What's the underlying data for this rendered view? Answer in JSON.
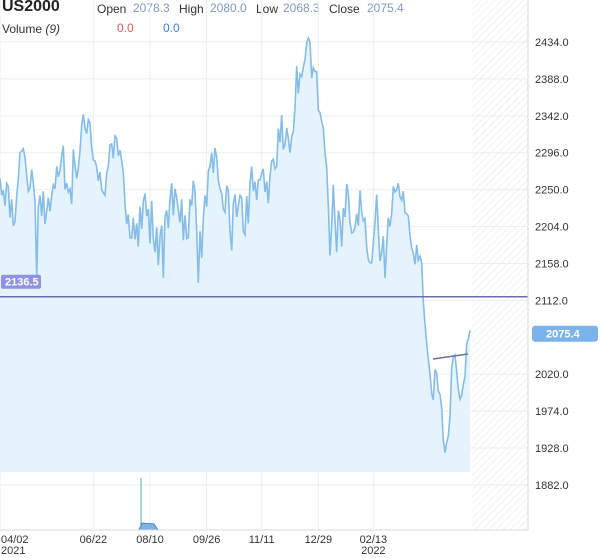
{
  "header": {
    "symbol": "US2000",
    "open_label": "Open",
    "open_value": "2078.3",
    "high_label": "High",
    "high_value": "2080.0",
    "low_label": "Low",
    "low_value": "2068.3",
    "close_label": "Close",
    "close_value": "2075.4",
    "volume_label": "Volume",
    "volume_period": "(9)",
    "volume_value_1": "0.0",
    "volume_value_2": "0.0"
  },
  "colors": {
    "line": "#86bce8",
    "fill": "#e5f3fd",
    "hline": "#6b6fa8",
    "label_bg": "#8f93e6",
    "last_bg": "#7bb4ea",
    "vol_red": "#d45a5a",
    "vol_blue": "#3f7fd6"
  },
  "chart_data": {
    "type": "area",
    "y_ticks": [
      "2434.0",
      "2388.0",
      "2342.0",
      "2296.0",
      "2250.0",
      "2204.0",
      "2158.0",
      "2112.0",
      "2020.0",
      "1974.0",
      "1928.0",
      "1882.0"
    ],
    "y_tick_values": [
      2434,
      2388,
      2342,
      2296,
      2250,
      2204,
      2158,
      2112,
      2020,
      1974,
      1928,
      1882
    ],
    "ylim": [
      1860,
      2465
    ],
    "x_ticks": [
      {
        "label": "04/02",
        "sub": "2021",
        "idx": 0
      },
      {
        "label": "06/22",
        "sub": "",
        "idx": 56
      },
      {
        "label": "08/10",
        "sub": "",
        "idx": 90
      },
      {
        "label": "09/26",
        "sub": "",
        "idx": 124
      },
      {
        "label": "11/11",
        "sub": "",
        "idx": 157
      },
      {
        "label": "12/29",
        "sub": "",
        "idx": 191
      },
      {
        "label": "02/13",
        "sub": "2022",
        "idx": 224
      }
    ],
    "horizontal_line": {
      "value": 2136.5,
      "label": "2136.5"
    },
    "last_price": {
      "value": 2075.4,
      "label": "2075.4"
    },
    "values": [
      2264,
      2243,
      2249,
      2230,
      2258,
      2254,
      2215,
      2238,
      2205,
      2210,
      2242,
      2263,
      2296,
      2298,
      2301,
      2290,
      2268,
      2248,
      2252,
      2275,
      2259,
      2235,
      2140,
      2228,
      2243,
      2217,
      2248,
      2207,
      2223,
      2240,
      2223,
      2243,
      2256,
      2251,
      2279,
      2266,
      2274,
      2292,
      2305,
      2250,
      2258,
      2247,
      2251,
      2232,
      2300,
      2280,
      2264,
      2277,
      2298,
      2330,
      2344,
      2327,
      2320,
      2337,
      2333,
      2302,
      2287,
      2286,
      2278,
      2261,
      2272,
      2250,
      2246,
      2243,
      2271,
      2279,
      2306,
      2307,
      2289,
      2317,
      2314,
      2292,
      2299,
      2286,
      2271,
      2233,
      2207,
      2219,
      2190,
      2190,
      2215,
      2188,
      2208,
      2179,
      2229,
      2201,
      2235,
      2245,
      2217,
      2226,
      2183,
      2236,
      2189,
      2172,
      2203,
      2156,
      2191,
      2205,
      2140,
      2216,
      2224,
      2202,
      2238,
      2258,
      2218,
      2251,
      2240,
      2225,
      2209,
      2238,
      2187,
      2218,
      2189,
      2190,
      2238,
      2230,
      2261,
      2248,
      2198,
      2134,
      2198,
      2165,
      2214,
      2243,
      2229,
      2273,
      2279,
      2296,
      2271,
      2302,
      2290,
      2262,
      2251,
      2245,
      2226,
      2222,
      2255,
      2249,
      2198,
      2174,
      2233,
      2244,
      2216,
      2230,
      2243,
      2240,
      2198,
      2194,
      2242,
      2208,
      2258,
      2279,
      2248,
      2260,
      2237,
      2262,
      2262,
      2270,
      2276,
      2247,
      2260,
      2233,
      2267,
      2286,
      2288,
      2276,
      2279,
      2326,
      2309,
      2343,
      2300,
      2306,
      2327,
      2314,
      2296,
      2316,
      2322,
      2352,
      2404,
      2370,
      2394,
      2391,
      2403,
      2412,
      2433,
      2439,
      2434,
      2389,
      2402,
      2397,
      2397,
      2349,
      2346,
      2335,
      2327,
      2296,
      2278,
      2230,
      2168,
      2205,
      2256,
      2210,
      2172,
      2224,
      2213,
      2179,
      2227,
      2216,
      2257,
      2246,
      2209,
      2196,
      2197,
      2203,
      2220,
      2205,
      2249,
      2222,
      2211,
      2214,
      2178,
      2163,
      2159,
      2159,
      2183,
      2210,
      2244,
      2201,
      2161,
      2172,
      2192,
      2140,
      2181,
      2215,
      2204,
      2221,
      2254,
      2247,
      2250,
      2258,
      2241,
      2237,
      2248,
      2221,
      2220,
      2217,
      2193,
      2177,
      2171,
      2157,
      2181,
      2162,
      2167,
      2159,
      2111,
      2082,
      2058,
      2039,
      2020,
      1996,
      1988,
      2026,
      2021,
      1999,
      1995,
      1978,
      1938,
      1922,
      1935,
      1943,
      1968,
      2028,
      2041,
      2044,
      2023,
      2001,
      1989,
      1994,
      2007,
      2017,
      2058,
      2064,
      2075
    ]
  }
}
